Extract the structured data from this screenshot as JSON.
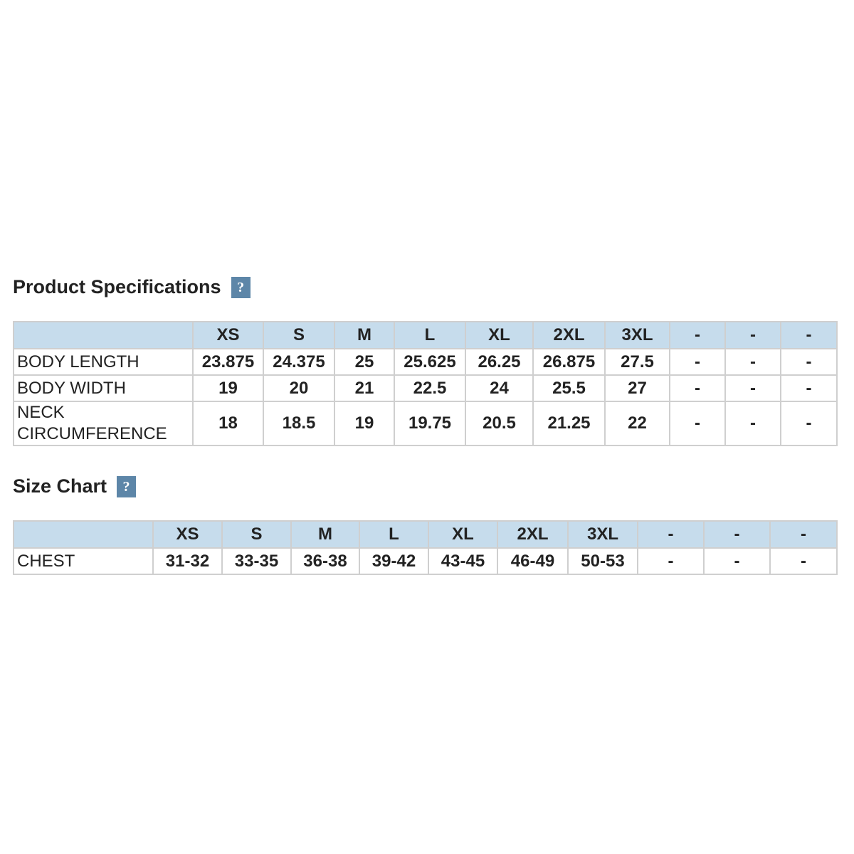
{
  "sections": [
    {
      "title": "Product Specifications",
      "help": "?",
      "columns": [
        "XS",
        "S",
        "M",
        "L",
        "XL",
        "2XL",
        "3XL",
        "-",
        "-",
        "-"
      ],
      "rows": [
        {
          "label": "BODY LENGTH",
          "cells": [
            "23.875",
            "24.375",
            "25",
            "25.625",
            "26.25",
            "26.875",
            "27.5",
            "-",
            "-",
            "-"
          ]
        },
        {
          "label": "BODY WIDTH",
          "cells": [
            "19",
            "20",
            "21",
            "22.5",
            "24",
            "25.5",
            "27",
            "-",
            "-",
            "-"
          ]
        },
        {
          "label": "NECK CIRCUMFERENCE",
          "cells": [
            "18",
            "18.5",
            "19",
            "19.75",
            "20.5",
            "21.25",
            "22",
            "-",
            "-",
            "-"
          ]
        }
      ]
    },
    {
      "title": "Size Chart",
      "help": "?",
      "columns": [
        "XS",
        "S",
        "M",
        "L",
        "XL",
        "2XL",
        "3XL",
        "-",
        "-",
        "-"
      ],
      "rows": [
        {
          "label": "CHEST",
          "cells": [
            "31-32",
            "33-35",
            "36-38",
            "39-42",
            "43-45",
            "46-49",
            "50-53",
            "-",
            "-",
            "-"
          ]
        }
      ]
    }
  ]
}
